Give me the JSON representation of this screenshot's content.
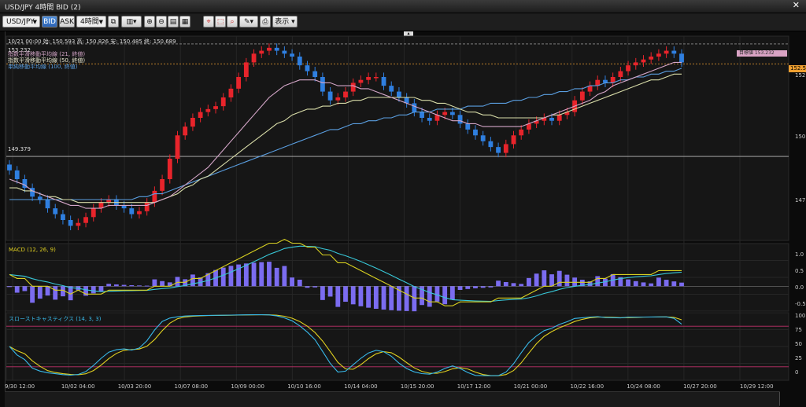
{
  "window": {
    "title": "USD/JPY 4時間 BID (2)",
    "close_glyph": "✕"
  },
  "toolbar": {
    "symbol": "USD/JPY",
    "bid_label": "BID",
    "ask_label": "ASK",
    "timeframe": "4時間",
    "display_label": "表示"
  },
  "info": {
    "text": "10/21 00:00  始: 150.593  高: 150.826  安: 150.485  終: 150.689"
  },
  "indicators": {
    "ema21": "指数平滑移動平均線 (21, 終値)",
    "ema50": "指数平滑移動平均線 (50, 終値)",
    "sma100": "単純移動平均線 (100, 終値)"
  },
  "price": {
    "top_label": "153.232",
    "hline_label": "149.379",
    "current_tag": "152.5",
    "pink_tag": "目標値 153.232",
    "axis": [
      "152.5",
      "150.0",
      "147.5"
    ]
  },
  "macd": {
    "label": "MACD (12, 26, 9)",
    "axis": [
      "1.0",
      "0.5",
      "0.0",
      "-0.5"
    ]
  },
  "stoch": {
    "label": "スローストキャスティクス (14, 3, 3)",
    "axis": [
      "100",
      "75",
      "50",
      "25",
      "0"
    ]
  },
  "xaxis": [
    "9/30 12:00",
    "10/02 04:00",
    "10/03 20:00",
    "10/07 08:00",
    "10/09 00:00",
    "10/10 16:00",
    "10/14 04:00",
    "10/15 20:00",
    "10/17 12:00",
    "10/21 00:00",
    "10/22 16:00",
    "10/24 08:00",
    "10/27 20:00",
    "10/29 12:00"
  ],
  "colors": {
    "up": "#e8242b",
    "down": "#2f7fe0",
    "ema21": "#d4a6c8",
    "ema50": "#d8dca8",
    "sma100": "#5a9ee0",
    "macd": "#d8d020",
    "signal": "#38c8d8",
    "hist": "#7b6cf0",
    "stoch_k": "#38b8e8",
    "stoch_d": "#e0d020"
  },
  "chart_data": {
    "type": "candlestick",
    "price_ylim": [
      146.5,
      153.5
    ],
    "closes": [
      148.9,
      148.6,
      148.3,
      148.0,
      147.9,
      147.6,
      147.4,
      147.2,
      147.0,
      147.1,
      147.3,
      147.6,
      147.8,
      147.9,
      147.7,
      147.6,
      147.4,
      147.5,
      147.8,
      148.2,
      148.6,
      149.3,
      150.1,
      150.4,
      150.7,
      150.9,
      151.0,
      151.1,
      151.4,
      151.7,
      152.1,
      152.6,
      152.9,
      153.0,
      153.1,
      153.0,
      152.9,
      152.8,
      152.5,
      152.3,
      152.1,
      151.6,
      151.3,
      151.4,
      151.6,
      151.9,
      152.0,
      152.1,
      152.1,
      151.8,
      151.6,
      151.4,
      151.2,
      150.9,
      150.7,
      150.6,
      150.8,
      150.9,
      150.8,
      150.5,
      150.3,
      150.1,
      149.9,
      149.7,
      149.5,
      149.8,
      150.1,
      150.3,
      150.5,
      150.6,
      150.7,
      150.6,
      150.8,
      150.9,
      151.3,
      151.6,
      151.8,
      152.0,
      151.9,
      152.1,
      152.3,
      152.5,
      152.6,
      152.7,
      152.8,
      152.9,
      153.0,
      152.9,
      152.6
    ],
    "ema21": [
      148.6,
      148.5,
      148.4,
      148.2,
      148.1,
      148.0,
      147.9,
      147.8,
      147.7,
      147.7,
      147.6,
      147.6,
      147.6,
      147.7,
      147.7,
      147.7,
      147.7,
      147.7,
      147.7,
      147.8,
      147.9,
      148.0,
      148.2,
      148.4,
      148.6,
      148.8,
      149.0,
      149.3,
      149.6,
      149.9,
      150.2,
      150.5,
      150.8,
      151.1,
      151.4,
      151.6,
      151.8,
      151.9,
      152.0,
      152.0,
      152.0,
      151.9,
      151.9,
      151.8,
      151.8,
      151.8,
      151.7,
      151.7,
      151.6,
      151.5,
      151.4,
      151.3,
      151.2,
      151.1,
      151.0,
      150.9,
      150.8,
      150.7,
      150.6,
      150.6,
      150.5,
      150.5,
      150.4,
      150.4,
      150.4,
      150.4,
      150.4,
      150.4,
      150.5,
      150.6,
      150.7,
      150.8,
      150.9,
      151.0,
      151.1,
      151.2,
      151.3,
      151.5,
      151.6,
      151.8,
      151.9,
      152.0,
      152.1,
      152.2,
      152.3,
      152.4,
      152.5,
      152.6,
      152.6
    ],
    "ema50": [
      148.3,
      148.3,
      148.2,
      148.2,
      148.1,
      148.0,
      148.0,
      147.9,
      147.9,
      147.8,
      147.8,
      147.8,
      147.8,
      147.8,
      147.8,
      147.8,
      147.8,
      147.8,
      147.8,
      147.8,
      147.9,
      148.0,
      148.1,
      148.3,
      148.4,
      148.6,
      148.7,
      148.9,
      149.1,
      149.3,
      149.5,
      149.7,
      149.9,
      150.1,
      150.3,
      150.5,
      150.6,
      150.8,
      150.9,
      151.0,
      151.0,
      151.1,
      151.1,
      151.2,
      151.2,
      151.3,
      151.3,
      151.4,
      151.4,
      151.4,
      151.4,
      151.4,
      151.4,
      151.4,
      151.3,
      151.3,
      151.2,
      151.2,
      151.1,
      151.0,
      150.9,
      150.9,
      150.8,
      150.8,
      150.7,
      150.7,
      150.7,
      150.7,
      150.7,
      150.7,
      150.7,
      150.8,
      150.8,
      150.9,
      151.0,
      151.1,
      151.2,
      151.3,
      151.4,
      151.5,
      151.6,
      151.7,
      151.8,
      151.9,
      152.0,
      152.0,
      152.1,
      152.2,
      152.2
    ],
    "sma100": [
      147.9,
      147.9,
      147.9,
      147.9,
      147.9,
      147.9,
      147.9,
      147.9,
      147.9,
      147.9,
      147.9,
      147.9,
      147.9,
      147.9,
      147.9,
      147.9,
      147.9,
      148.0,
      148.0,
      148.1,
      148.1,
      148.2,
      148.3,
      148.4,
      148.5,
      148.6,
      148.7,
      148.8,
      148.9,
      149.0,
      149.1,
      149.2,
      149.3,
      149.4,
      149.5,
      149.6,
      149.7,
      149.8,
      149.9,
      150.0,
      150.1,
      150.2,
      150.3,
      150.3,
      150.4,
      150.5,
      150.5,
      150.6,
      150.6,
      150.7,
      150.7,
      150.8,
      150.8,
      150.9,
      150.9,
      150.9,
      151.0,
      151.0,
      151.0,
      151.0,
      151.1,
      151.1,
      151.1,
      151.2,
      151.2,
      151.2,
      151.3,
      151.3,
      151.4,
      151.4,
      151.5,
      151.5,
      151.6,
      151.6,
      151.7,
      151.7,
      151.8,
      151.8,
      151.9,
      151.9,
      152.0,
      152.0,
      152.1,
      152.1,
      152.2,
      152.2,
      152.3,
      152.3,
      152.4
    ],
    "hline": 149.379,
    "macd_ylim": [
      -0.7,
      1.2
    ],
    "stoch_ylim": [
      0,
      100
    ]
  }
}
